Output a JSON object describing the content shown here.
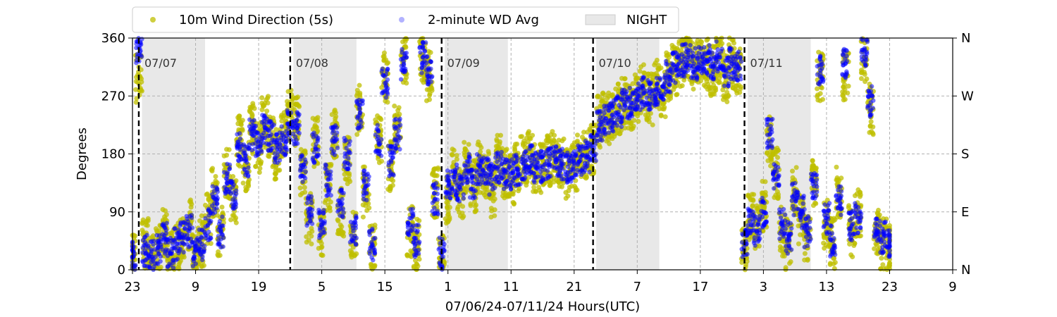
{
  "chart_data": {
    "type": "scatter",
    "title": "",
    "xlabel": "07/06/24-07/11/24  Hours(UTC)",
    "ylabel": "Degrees",
    "xlim": [
      0,
      130
    ],
    "ylim": [
      0,
      360
    ],
    "x_ticks": [
      {
        "x": 0,
        "label": "23"
      },
      {
        "x": 10,
        "label": "9"
      },
      {
        "x": 20,
        "label": "19"
      },
      {
        "x": 30,
        "label": "5"
      },
      {
        "x": 40,
        "label": "15"
      },
      {
        "x": 50,
        "label": "1"
      },
      {
        "x": 60,
        "label": "11"
      },
      {
        "x": 70,
        "label": "21"
      },
      {
        "x": 80,
        "label": "7"
      },
      {
        "x": 90,
        "label": "17"
      },
      {
        "x": 100,
        "label": "3"
      },
      {
        "x": 110,
        "label": "13"
      },
      {
        "x": 120,
        "label": "23"
      },
      {
        "x": 130,
        "label": "9"
      }
    ],
    "y_ticks": [
      0,
      90,
      180,
      270,
      360
    ],
    "y_ticks_right": [
      {
        "y": 0,
        "label": "N"
      },
      {
        "y": 90,
        "label": "E"
      },
      {
        "y": 180,
        "label": "S"
      },
      {
        "y": 270,
        "label": "W"
      },
      {
        "y": 360,
        "label": "N"
      }
    ],
    "grid": true,
    "legend_position": "top, above plot",
    "legend": [
      {
        "label": "10m Wind Direction (5s)",
        "marker": "dot",
        "color": "#bfbf00"
      },
      {
        "label": "2-minute WD Avg",
        "marker": "dot-faint",
        "color": "#0000ff"
      },
      {
        "label": "NIGHT",
        "marker": "patch",
        "color": "#e8e8e8"
      }
    ],
    "day_markers": [
      {
        "x": 1,
        "label": "07/07"
      },
      {
        "x": 25,
        "label": "07/08"
      },
      {
        "x": 49,
        "label": "07/09"
      },
      {
        "x": 73,
        "label": "07/10"
      },
      {
        "x": 97,
        "label": "07/11"
      }
    ],
    "night_periods": [
      [
        1.5,
        11.5
      ],
      [
        25.5,
        35.5
      ],
      [
        49.5,
        59.5
      ],
      [
        73.5,
        83.5
      ],
      [
        97.5,
        107.5
      ]
    ],
    "series": [
      {
        "name": "10m Wind Direction (5s)",
        "color": "#bfbf00",
        "x": [
          0,
          1,
          2,
          3,
          4,
          5,
          6,
          7,
          8,
          9,
          10,
          11,
          12,
          13,
          14,
          15,
          16,
          17,
          18,
          19,
          20,
          21,
          22,
          23,
          24,
          25,
          26,
          27,
          28,
          29,
          30,
          31,
          32,
          33,
          34,
          35,
          36,
          37,
          38,
          39,
          40,
          41,
          42,
          43,
          44,
          45,
          46,
          47,
          48,
          49,
          50,
          51,
          52,
          53,
          54,
          55,
          56,
          57,
          58,
          59,
          60,
          61,
          62,
          63,
          64,
          65,
          66,
          67,
          68,
          69,
          70,
          71,
          72,
          73,
          74,
          75,
          76,
          77,
          78,
          79,
          80,
          81,
          82,
          83,
          84,
          85,
          86,
          87,
          88,
          89,
          90,
          91,
          92,
          93,
          94,
          95,
          96,
          97,
          98,
          99,
          100,
          101,
          102,
          103,
          104,
          105,
          106,
          107,
          108,
          109,
          110,
          111,
          112,
          113,
          114,
          115,
          116,
          117,
          118,
          119,
          120
        ],
        "y": [
          20,
          300,
          40,
          15,
          30,
          60,
          20,
          35,
          50,
          70,
          25,
          45,
          80,
          120,
          60,
          150,
          110,
          200,
          160,
          220,
          190,
          230,
          200,
          180,
          210,
          240,
          230,
          150,
          80,
          200,
          60,
          130,
          210,
          90,
          170,
          50,
          250,
          120,
          30,
          200,
          300,
          160,
          220,
          330,
          60,
          40,
          330,
          300,
          120,
          20,
          110,
          150,
          120,
          160,
          130,
          160,
          145,
          120,
          170,
          150,
          140,
          160,
          170,
          175,
          160,
          155,
          170,
          175,
          165,
          150,
          160,
          170,
          180,
          185,
          230,
          240,
          235,
          250,
          260,
          255,
          270,
          280,
          265,
          290,
          275,
          300,
          310,
          320,
          330,
          315,
          330,
          320,
          310,
          330,
          300,
          320,
          310,
          40,
          80,
          60,
          100,
          200,
          150,
          60,
          40,
          120,
          80,
          50,
          140,
          300,
          70,
          40,
          120,
          300,
          60,
          90,
          330,
          250,
          60,
          40,
          30
        ]
      },
      {
        "name": "2-minute WD Avg",
        "color": "#0000ff",
        "x": [
          0,
          1,
          2,
          3,
          4,
          5,
          6,
          7,
          8,
          9,
          10,
          11,
          12,
          13,
          14,
          15,
          16,
          17,
          18,
          19,
          20,
          21,
          22,
          23,
          24,
          25,
          26,
          27,
          28,
          29,
          30,
          31,
          32,
          33,
          34,
          35,
          36,
          37,
          38,
          39,
          40,
          41,
          42,
          43,
          44,
          45,
          46,
          47,
          48,
          49,
          50,
          51,
          52,
          53,
          54,
          55,
          56,
          57,
          58,
          59,
          60,
          61,
          62,
          63,
          64,
          65,
          66,
          67,
          68,
          69,
          70,
          71,
          72,
          73,
          74,
          75,
          76,
          77,
          78,
          79,
          80,
          81,
          82,
          83,
          84,
          85,
          86,
          87,
          88,
          89,
          90,
          91,
          92,
          93,
          94,
          95,
          96,
          97,
          98,
          99,
          100,
          101,
          102,
          103,
          104,
          105,
          106,
          107,
          108,
          109,
          110,
          111,
          112,
          113,
          114,
          115,
          116,
          117,
          118,
          119,
          120
        ],
        "y": [
          20,
          345,
          30,
          20,
          30,
          50,
          25,
          40,
          50,
          60,
          30,
          40,
          70,
          110,
          60,
          140,
          120,
          190,
          170,
          210,
          200,
          220,
          210,
          190,
          200,
          225,
          220,
          160,
          90,
          190,
          70,
          140,
          200,
          100,
          180,
          60,
          240,
          130,
          40,
          200,
          290,
          170,
          210,
          320,
          70,
          45,
          330,
          310,
          110,
          25,
          130,
          140,
          125,
          155,
          135,
          155,
          150,
          140,
          160,
          150,
          150,
          155,
          165,
          170,
          160,
          160,
          165,
          170,
          165,
          160,
          165,
          170,
          175,
          185,
          225,
          235,
          240,
          245,
          255,
          260,
          265,
          275,
          270,
          280,
          285,
          300,
          315,
          325,
          330,
          320,
          330,
          325,
          320,
          330,
          310,
          320,
          315,
          40,
          70,
          60,
          90,
          210,
          140,
          70,
          50,
          110,
          90,
          60,
          130,
          310,
          80,
          45,
          110,
          320,
          70,
          80,
          340,
          260,
          70,
          50,
          40
        ]
      }
    ]
  }
}
